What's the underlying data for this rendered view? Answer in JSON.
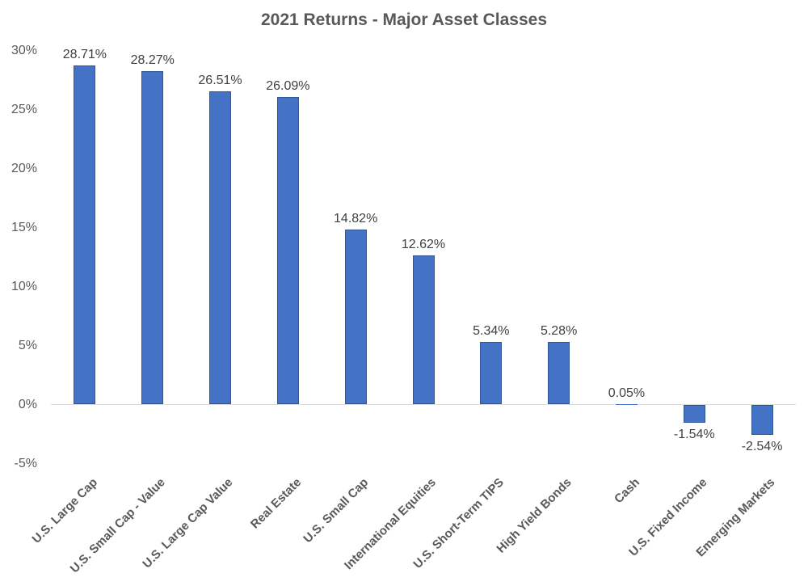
{
  "chart_data": {
    "type": "bar",
    "title": "2021 Returns - Major Asset Classes",
    "categories": [
      "U.S. Large Cap",
      "U.S. Small Cap - Value",
      "U.S. Large Cap Value",
      "Real Estate",
      "U.S. Small Cap",
      "International Equities",
      "U.S. Short-Term TIPS",
      "High Yield Bonds",
      "Cash",
      "U.S. Fixed Income",
      "Emerging Markets"
    ],
    "values": [
      28.71,
      28.27,
      26.51,
      26.09,
      14.82,
      12.62,
      5.34,
      5.28,
      0.05,
      -1.54,
      -2.54
    ],
    "data_labels": [
      "28.71%",
      "28.27%",
      "26.51%",
      "26.09%",
      "14.82%",
      "12.62%",
      "5.34%",
      "5.28%",
      "0.05%",
      "-1.54%",
      "-2.54%"
    ],
    "xlabel": "",
    "ylabel": "",
    "ylim": [
      -5,
      30
    ],
    "y_ticks": [
      30,
      25,
      20,
      15,
      10,
      5,
      0,
      -5
    ],
    "y_tick_labels": [
      "30%",
      "25%",
      "20%",
      "15%",
      "10%",
      "5%",
      "0%",
      "-5%"
    ],
    "grid": false,
    "legend_position": "none",
    "colors": {
      "bar_fill": "#4472C4",
      "bar_border": "#2F5597",
      "axis_line": "#D9D9D9",
      "title_text": "#595959",
      "tick_text": "#595959",
      "data_label_text": "#404040",
      "category_text": "#595959"
    }
  }
}
